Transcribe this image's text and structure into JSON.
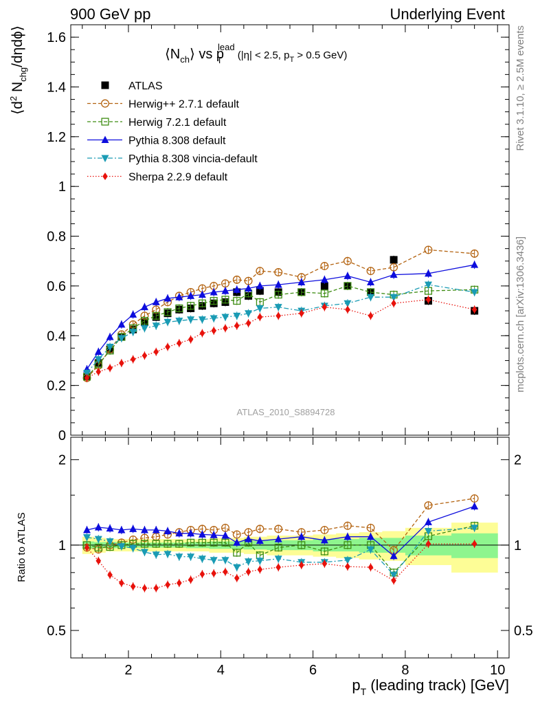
{
  "header": {
    "left": "900 GeV pp",
    "right": "Underlying Event"
  },
  "side_labels": {
    "rivet": "Rivet 3.1.10, ≥ 2.5M events",
    "mcplots": "mcplots.cern.ch [arXiv:1306.3436]"
  },
  "chart_data": [
    {
      "type": "scatter",
      "title": "⟨N_ch⟩ vs p_T^lead (|η| < 2.5, p_T > 0.5 GeV)",
      "ylabel": "⟨d² N_chg/dηdϕ⟩",
      "xlabel": "p_T (leading track) [GeV]",
      "watermark": "ATLAS_2010_S8894728",
      "xlim": [
        0.75,
        10.25
      ],
      "ylim": [
        0,
        1.65
      ],
      "yticks": [
        0,
        0.2,
        0.4,
        0.6,
        0.8,
        1,
        1.2,
        1.4,
        1.6
      ],
      "ytick_labels": [
        "0",
        "0.2",
        "0.4",
        "0.6",
        "0.8",
        "1",
        "1.2",
        "1.4",
        "1.6"
      ],
      "legend_position": "top-left",
      "x": [
        1.1,
        1.35,
        1.6,
        1.85,
        2.1,
        2.35,
        2.6,
        2.85,
        3.1,
        3.35,
        3.6,
        3.85,
        4.1,
        4.35,
        4.6,
        4.85,
        5.25,
        5.75,
        6.25,
        6.75,
        7.25,
        7.75,
        8.5,
        9.5
      ],
      "series": [
        {
          "name": "ATLAS",
          "color": "#000000",
          "marker": "square-filled",
          "line": "none",
          "values": [
            0.235,
            0.29,
            0.345,
            0.395,
            0.425,
            0.455,
            0.475,
            0.49,
            0.505,
            0.51,
            0.52,
            0.53,
            0.535,
            0.575,
            0.56,
            0.58,
            0.575,
            0.575,
            0.6,
            0.6,
            0.575,
            0.705,
            0.54,
            0.5
          ]
        },
        {
          "name": "Herwig++ 2.7.1 default",
          "color": "#b3620f",
          "marker": "circle-open",
          "line": "dashed",
          "values": [
            0.23,
            0.28,
            0.345,
            0.405,
            0.445,
            0.48,
            0.505,
            0.535,
            0.56,
            0.575,
            0.59,
            0.6,
            0.61,
            0.625,
            0.62,
            0.66,
            0.655,
            0.635,
            0.68,
            0.7,
            0.66,
            0.675,
            0.745,
            0.73
          ]
        },
        {
          "name": "Herwig 7.2.1 default",
          "color": "#3d8c12",
          "marker": "square-open",
          "line": "dashed",
          "values": [
            0.235,
            0.285,
            0.34,
            0.395,
            0.43,
            0.46,
            0.48,
            0.495,
            0.51,
            0.52,
            0.53,
            0.54,
            0.545,
            0.54,
            0.57,
            0.535,
            0.565,
            0.575,
            0.57,
            0.6,
            0.575,
            0.565,
            0.58,
            0.585
          ]
        },
        {
          "name": "Pythia 8.308 default",
          "color": "#0d0ddd",
          "marker": "triangle-up-filled",
          "line": "solid",
          "values": [
            0.265,
            0.335,
            0.395,
            0.445,
            0.485,
            0.515,
            0.535,
            0.55,
            0.555,
            0.56,
            0.565,
            0.575,
            0.58,
            0.585,
            0.59,
            0.6,
            0.605,
            0.615,
            0.625,
            0.64,
            0.615,
            0.645,
            0.65,
            0.685
          ]
        },
        {
          "name": "Pythia 8.308 vincia-default",
          "color": "#1a9bb4",
          "marker": "triangle-down-filled",
          "line": "dashdot",
          "values": [
            0.25,
            0.305,
            0.355,
            0.39,
            0.415,
            0.43,
            0.44,
            0.455,
            0.46,
            0.465,
            0.465,
            0.47,
            0.475,
            0.48,
            0.49,
            0.51,
            0.515,
            0.5,
            0.52,
            0.53,
            0.555,
            0.555,
            0.605,
            0.575
          ]
        },
        {
          "name": "Sherpa 2.2.9 default",
          "color": "#e8120c",
          "marker": "diamond-filled",
          "line": "dotted",
          "values": [
            0.23,
            0.255,
            0.27,
            0.29,
            0.305,
            0.32,
            0.335,
            0.355,
            0.37,
            0.385,
            0.41,
            0.42,
            0.43,
            0.44,
            0.45,
            0.475,
            0.48,
            0.49,
            0.515,
            0.505,
            0.48,
            0.53,
            0.545,
            0.505
          ]
        }
      ]
    },
    {
      "type": "scatter",
      "ylabel": "Ratio to ATLAS",
      "xlabel": "p_T (leading track) [GeV]",
      "xlim": [
        0.75,
        10.25
      ],
      "ylim": [
        0.4,
        2.4
      ],
      "log_y": true,
      "yticks": [
        0.5,
        1,
        2
      ],
      "ytick_labels": [
        "0.5",
        "1",
        "2"
      ],
      "xticks": [
        2,
        4,
        6,
        8,
        10
      ],
      "xtick_labels": [
        "2",
        "4",
        "6",
        "8",
        "10"
      ],
      "uncertainty_bands": {
        "inner_color": "#8ef58e",
        "outer_color": "#fdfd96",
        "edges": [
          1.0,
          1.25,
          1.5,
          1.75,
          2.0,
          2.25,
          2.5,
          2.75,
          3.0,
          3.25,
          3.5,
          3.75,
          4.0,
          4.25,
          4.5,
          4.75,
          5.0,
          5.5,
          6.0,
          6.5,
          7.0,
          7.5,
          8.0,
          9.0,
          10.0
        ],
        "inner": [
          0.03,
          0.025,
          0.025,
          0.02,
          0.02,
          0.02,
          0.02,
          0.02,
          0.02,
          0.025,
          0.025,
          0.03,
          0.03,
          0.03,
          0.035,
          0.035,
          0.04,
          0.04,
          0.05,
          0.05,
          0.06,
          0.06,
          0.08,
          0.1
        ],
        "outer": [
          0.07,
          0.06,
          0.05,
          0.05,
          0.05,
          0.05,
          0.05,
          0.05,
          0.05,
          0.05,
          0.05,
          0.06,
          0.06,
          0.06,
          0.07,
          0.07,
          0.08,
          0.08,
          0.09,
          0.1,
          0.11,
          0.12,
          0.15,
          0.2
        ]
      },
      "x": [
        1.1,
        1.35,
        1.6,
        1.85,
        2.1,
        2.35,
        2.6,
        2.85,
        3.1,
        3.35,
        3.6,
        3.85,
        4.1,
        4.35,
        4.6,
        4.85,
        5.25,
        5.75,
        6.25,
        6.75,
        7.25,
        7.75,
        8.5,
        9.5
      ],
      "series": [
        {
          "name": "Herwig++ 2.7.1 default",
          "color": "#b3620f",
          "marker": "circle-open",
          "line": "dashed",
          "values": [
            0.98,
            0.965,
            1.0,
            1.02,
            1.045,
            1.06,
            1.07,
            1.09,
            1.11,
            1.13,
            1.14,
            1.13,
            1.15,
            1.09,
            1.11,
            1.14,
            1.14,
            1.11,
            1.13,
            1.17,
            1.15,
            0.96,
            1.38,
            1.46
          ]
        },
        {
          "name": "Herwig 7.2.1 default",
          "color": "#3d8c12",
          "marker": "square-open",
          "line": "dashed",
          "values": [
            1.0,
            0.98,
            0.985,
            1.0,
            1.01,
            1.01,
            1.01,
            1.01,
            1.01,
            1.02,
            1.02,
            1.02,
            1.02,
            0.94,
            1.02,
            0.92,
            0.98,
            1.0,
            0.95,
            1.0,
            1.0,
            0.8,
            1.075,
            1.17
          ]
        },
        {
          "name": "Pythia 8.308 default",
          "color": "#0d0ddd",
          "marker": "triangle-up-filled",
          "line": "solid",
          "values": [
            1.13,
            1.155,
            1.145,
            1.13,
            1.14,
            1.13,
            1.13,
            1.12,
            1.1,
            1.1,
            1.09,
            1.085,
            1.08,
            1.02,
            1.05,
            1.035,
            1.05,
            1.07,
            1.04,
            1.07,
            1.07,
            0.915,
            1.205,
            1.37
          ]
        },
        {
          "name": "Pythia 8.308 vincia-default",
          "color": "#1a9bb4",
          "marker": "triangle-down-filled",
          "line": "dashdot",
          "values": [
            1.065,
            1.05,
            1.03,
            0.99,
            0.975,
            0.945,
            0.925,
            0.93,
            0.91,
            0.91,
            0.895,
            0.885,
            0.885,
            0.835,
            0.875,
            0.88,
            0.895,
            0.87,
            0.87,
            0.885,
            0.965,
            0.785,
            1.12,
            1.15
          ]
        },
        {
          "name": "Sherpa 2.2.9 default",
          "color": "#e8120c",
          "marker": "diamond-filled",
          "line": "dotted",
          "values": [
            0.98,
            0.88,
            0.785,
            0.735,
            0.715,
            0.705,
            0.705,
            0.725,
            0.735,
            0.755,
            0.79,
            0.795,
            0.805,
            0.765,
            0.805,
            0.82,
            0.835,
            0.85,
            0.86,
            0.84,
            0.835,
            0.75,
            1.01,
            1.01
          ]
        }
      ]
    }
  ]
}
